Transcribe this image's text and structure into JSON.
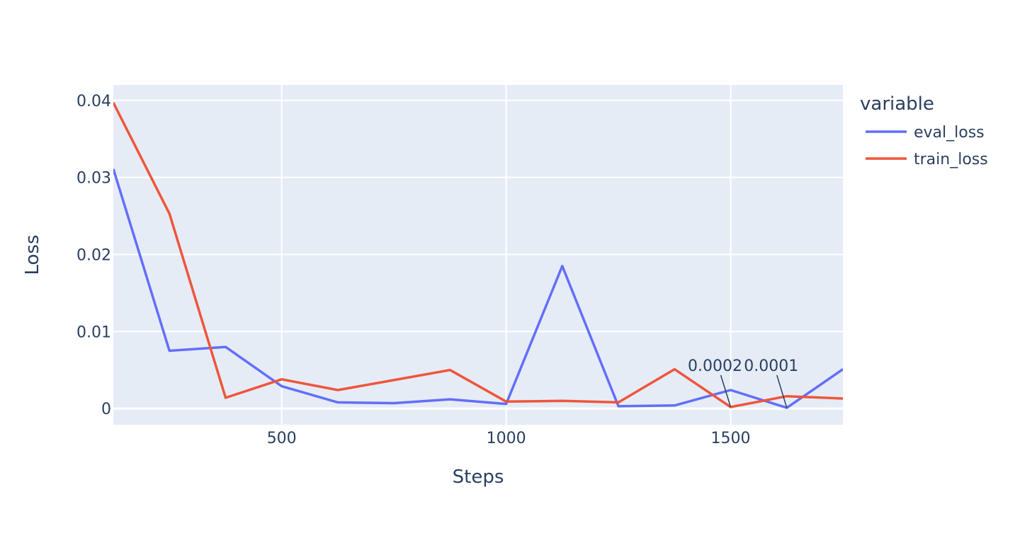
{
  "chart_data": {
    "type": "line",
    "xlabel": "Steps",
    "ylabel": "Loss",
    "xlim": [
      125,
      1750
    ],
    "ylim": [
      -0.0021,
      0.042
    ],
    "x_ticks": [
      500,
      1000,
      1500
    ],
    "x_tick_labels": [
      "500",
      "1000",
      "1500"
    ],
    "y_ticks": [
      0,
      0.01,
      0.02,
      0.03,
      0.04
    ],
    "y_tick_labels": [
      "0",
      "0.01",
      "0.02",
      "0.03",
      "0.04"
    ],
    "grid": true,
    "legend": {
      "title": "variable",
      "placement": "right"
    },
    "x": [
      125,
      250,
      375,
      500,
      625,
      750,
      875,
      1000,
      1125,
      1250,
      1375,
      1500,
      1625,
      1750
    ],
    "series": [
      {
        "name": "eval_loss",
        "color": "#636efa",
        "values": [
          0.0311,
          0.0075,
          0.008,
          0.0029,
          0.0008,
          0.0007,
          0.0012,
          0.0006,
          0.0185,
          0.0003,
          0.0004,
          0.0024,
          0.0001,
          0.0051
        ]
      },
      {
        "name": "train_loss",
        "color": "#ef553b",
        "values": [
          0.0397,
          0.0253,
          0.0014,
          0.0038,
          0.0024,
          0.0037,
          0.005,
          0.0009,
          0.001,
          0.0008,
          0.0051,
          0.0002,
          0.0016,
          0.0013
        ]
      }
    ],
    "annotations": [
      {
        "text": "0.0002",
        "x": 1500,
        "y": 0.0002
      },
      {
        "text": "0.0001",
        "x": 1625,
        "y": 0.0001
      }
    ]
  }
}
